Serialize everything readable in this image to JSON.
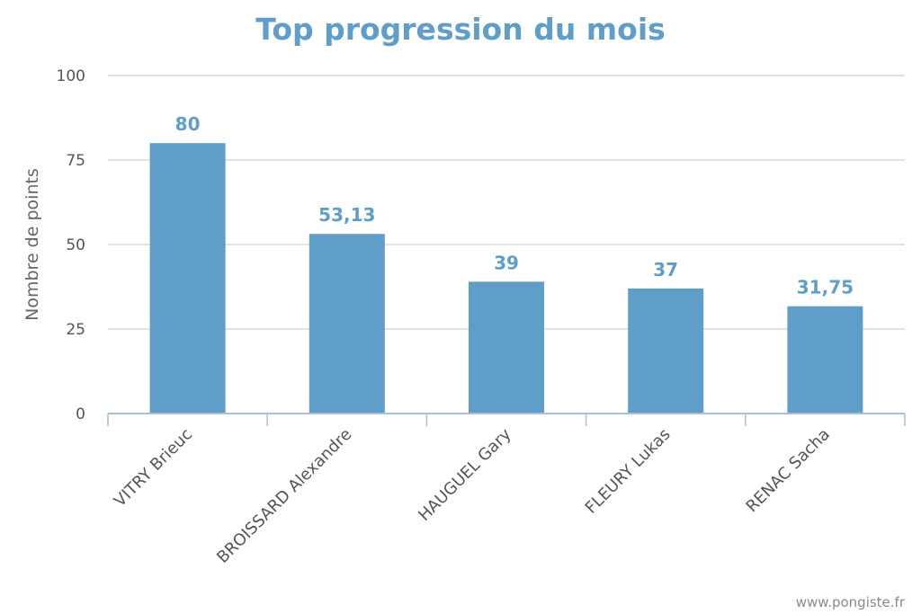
{
  "colors": {
    "bar": "#5f9ec8",
    "title": "#5f9ec8",
    "data_label": "#5f9ec8",
    "grid": "#cfd3d8",
    "axis": "#a9c0d6"
  },
  "credit": "www.pongiste.fr",
  "chart_data": {
    "type": "bar",
    "title": "Top progression du mois",
    "xlabel": "",
    "ylabel": "Nombre de points",
    "categories": [
      "VITRY Brieuc",
      "BROISSARD Alexandre",
      "HAUGUEL Gary",
      "FLEURY Lukas",
      "RENAC Sacha"
    ],
    "values": [
      80,
      53.13,
      39,
      37,
      31.75
    ],
    "data_labels": [
      "80",
      "53,13",
      "39",
      "37",
      "31,75"
    ],
    "ylim": [
      0,
      100
    ],
    "yticks": [
      0,
      25,
      50,
      75,
      100
    ],
    "grid": true,
    "legend": "none"
  }
}
